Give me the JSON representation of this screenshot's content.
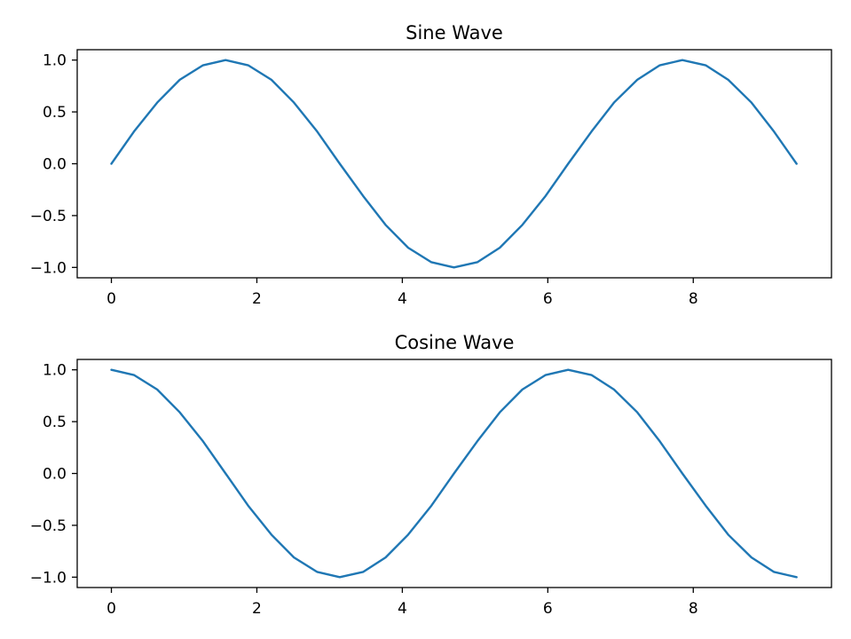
{
  "chart_data": [
    {
      "type": "line",
      "title": "Sine Wave",
      "xlabel": "",
      "ylabel": "",
      "xlim": [
        -0.47,
        9.9
      ],
      "ylim": [
        -1.1,
        1.1
      ],
      "xticks": [
        0,
        2,
        4,
        6,
        8
      ],
      "yticks": [
        -1.0,
        -0.5,
        0.0,
        0.5,
        1.0
      ],
      "xtick_labels": [
        "0",
        "2",
        "4",
        "6",
        "8"
      ],
      "ytick_labels": [
        "−1.0",
        "−0.5",
        "0.0",
        "0.5",
        "1.0"
      ],
      "grid": false,
      "series": [
        {
          "color": "#1f77b4",
          "x": [
            0,
            0.31,
            0.63,
            0.94,
            1.26,
            1.57,
            1.88,
            2.2,
            2.51,
            2.83,
            3.14,
            3.46,
            3.77,
            4.08,
            4.4,
            4.71,
            5.03,
            5.34,
            5.65,
            5.97,
            6.28,
            6.6,
            6.91,
            7.23,
            7.54,
            7.85,
            8.17,
            8.48,
            8.8,
            9.11,
            9.42
          ],
          "y": [
            0,
            0.31,
            0.59,
            0.81,
            0.95,
            1,
            0.95,
            0.81,
            0.59,
            0.31,
            0,
            -0.31,
            -0.59,
            -0.81,
            -0.95,
            -1,
            -0.95,
            -0.81,
            -0.59,
            -0.31,
            0,
            0.31,
            0.59,
            0.81,
            0.95,
            1,
            0.95,
            0.81,
            0.59,
            0.31,
            0
          ]
        }
      ]
    },
    {
      "type": "line",
      "title": "Cosine Wave",
      "xlabel": "",
      "ylabel": "",
      "xlim": [
        -0.47,
        9.9
      ],
      "ylim": [
        -1.1,
        1.1
      ],
      "xticks": [
        0,
        2,
        4,
        6,
        8
      ],
      "yticks": [
        -1.0,
        -0.5,
        0.0,
        0.5,
        1.0
      ],
      "xtick_labels": [
        "0",
        "2",
        "4",
        "6",
        "8"
      ],
      "ytick_labels": [
        "−1.0",
        "−0.5",
        "0.0",
        "0.5",
        "1.0"
      ],
      "grid": false,
      "series": [
        {
          "color": "#1f77b4",
          "x": [
            0,
            0.31,
            0.63,
            0.94,
            1.26,
            1.57,
            1.88,
            2.2,
            2.51,
            2.83,
            3.14,
            3.46,
            3.77,
            4.08,
            4.4,
            4.71,
            5.03,
            5.34,
            5.65,
            5.97,
            6.28,
            6.6,
            6.91,
            7.23,
            7.54,
            7.85,
            8.17,
            8.48,
            8.8,
            9.11,
            9.42
          ],
          "y": [
            1,
            0.95,
            0.81,
            0.59,
            0.31,
            0,
            -0.31,
            -0.59,
            -0.81,
            -0.95,
            -1,
            -0.95,
            -0.81,
            -0.59,
            -0.31,
            0,
            0.31,
            0.59,
            0.81,
            0.95,
            1,
            0.95,
            0.81,
            0.59,
            0.31,
            0,
            -0.31,
            -0.59,
            -0.81,
            -0.95,
            -1
          ]
        }
      ]
    }
  ]
}
